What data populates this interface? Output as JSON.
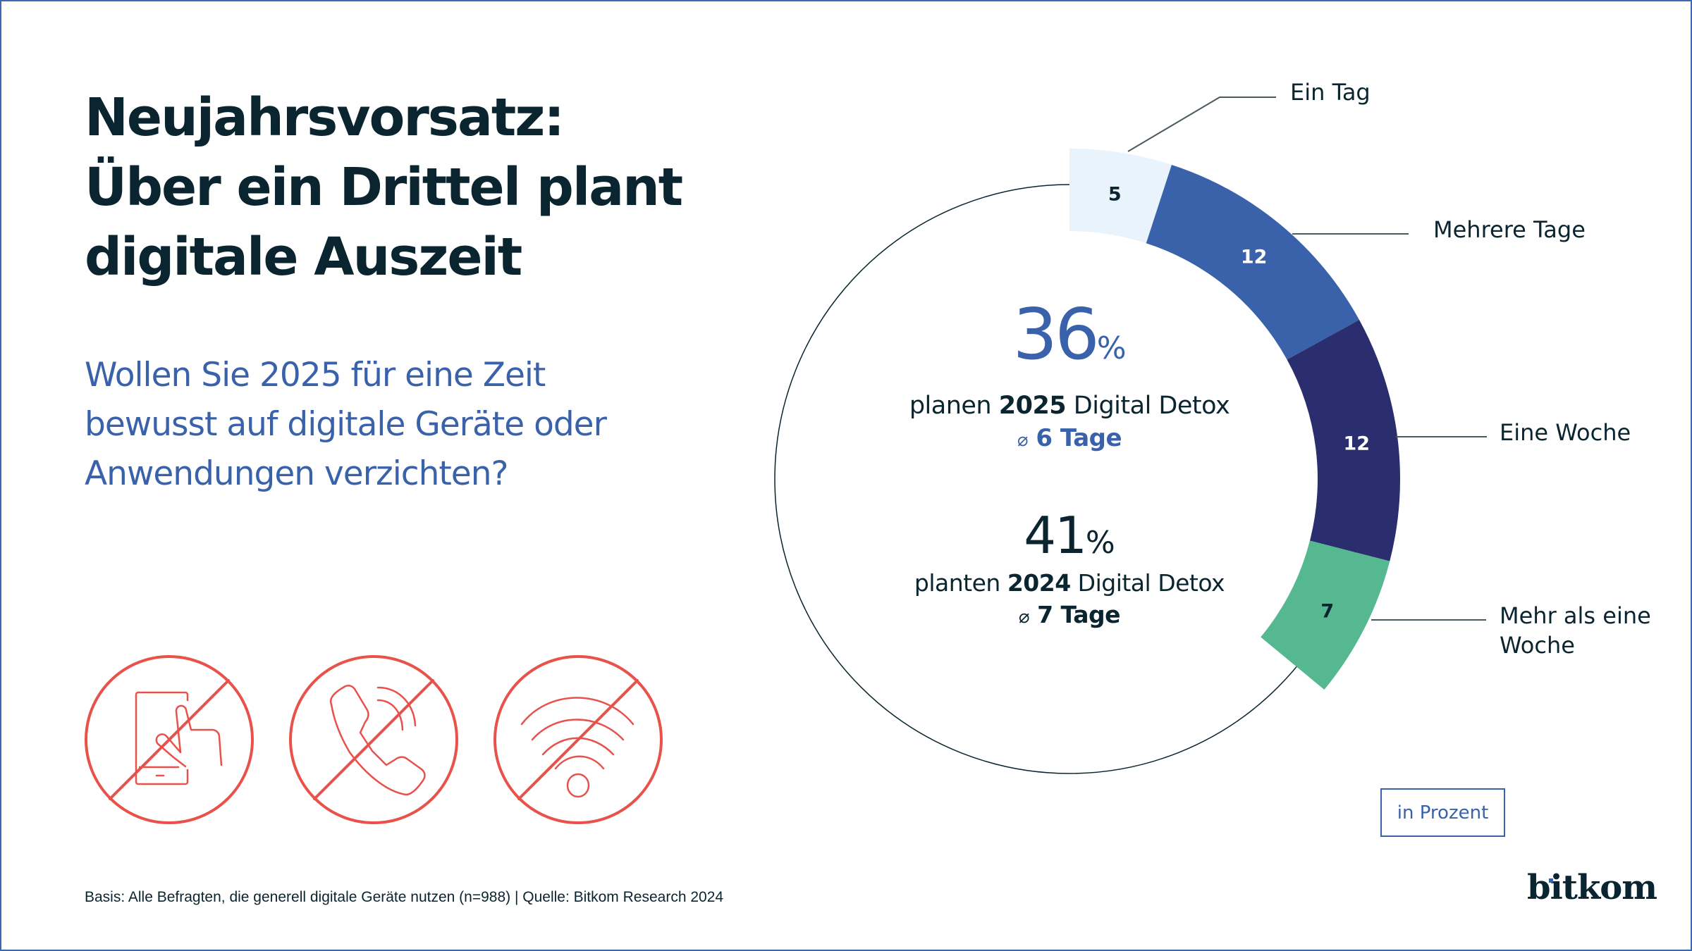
{
  "title_lines": [
    "Neujahrsvorsatz:",
    "Über ein Drittel plant",
    "digitale Auszeit"
  ],
  "question_lines": [
    "Wollen Sie 2025 für eine Zeit",
    "bewusst auf digitale Geräte oder",
    "Anwendungen verzichten?"
  ],
  "center": {
    "y2025": {
      "value": "36",
      "unit": "%",
      "prefix": "planen ",
      "year": "2025",
      "suffix": " Digital Detox",
      "avg_symbol": "⌀",
      "avg_text": "6 Tage"
    },
    "y2024": {
      "value": "41",
      "unit": "%",
      "prefix": "planten ",
      "year": "2024",
      "suffix": " Digital Detox",
      "avg_symbol": "⌀",
      "avg_text": "7 Tage"
    }
  },
  "icons": [
    "no-smartphone-icon",
    "no-phone-call-icon",
    "no-wifi-icon"
  ],
  "unit_label": "in Prozent",
  "footer": "Basis: Alle Befragten, die generell digitale Geräte nutzen (n=988) | Quelle: Bitkom Research 2024",
  "logo": "bitkom",
  "colors": {
    "frame": "#3f66b3",
    "title": "#0a2530",
    "accent_blue": "#3a62ab",
    "icon_red": "#e8524a",
    "leader": "#4a5a60"
  },
  "chart_data": {
    "type": "pie",
    "variant": "partial-donut",
    "title": "36% planen 2025 Digital Detox",
    "unit": "in Prozent",
    "total_percent": 36,
    "categories": [
      "Ein Tag",
      "Mehrere Tage",
      "Eine Woche",
      "Mehr als eine Woche"
    ],
    "values": [
      5,
      12,
      12,
      7
    ],
    "colors": [
      "#e8f3fc",
      "#3a62ab",
      "#2b2e6e",
      "#56b890"
    ],
    "label_colors": [
      "#0a2530",
      "#ffffff",
      "#ffffff",
      "#0a2530"
    ],
    "legend_labels": [
      [
        "Ein Tag"
      ],
      [
        "Mehrere Tage"
      ],
      [
        "Eine Woche"
      ],
      [
        "Mehr als eine",
        "Woche"
      ]
    ],
    "full_scale": 100
  }
}
